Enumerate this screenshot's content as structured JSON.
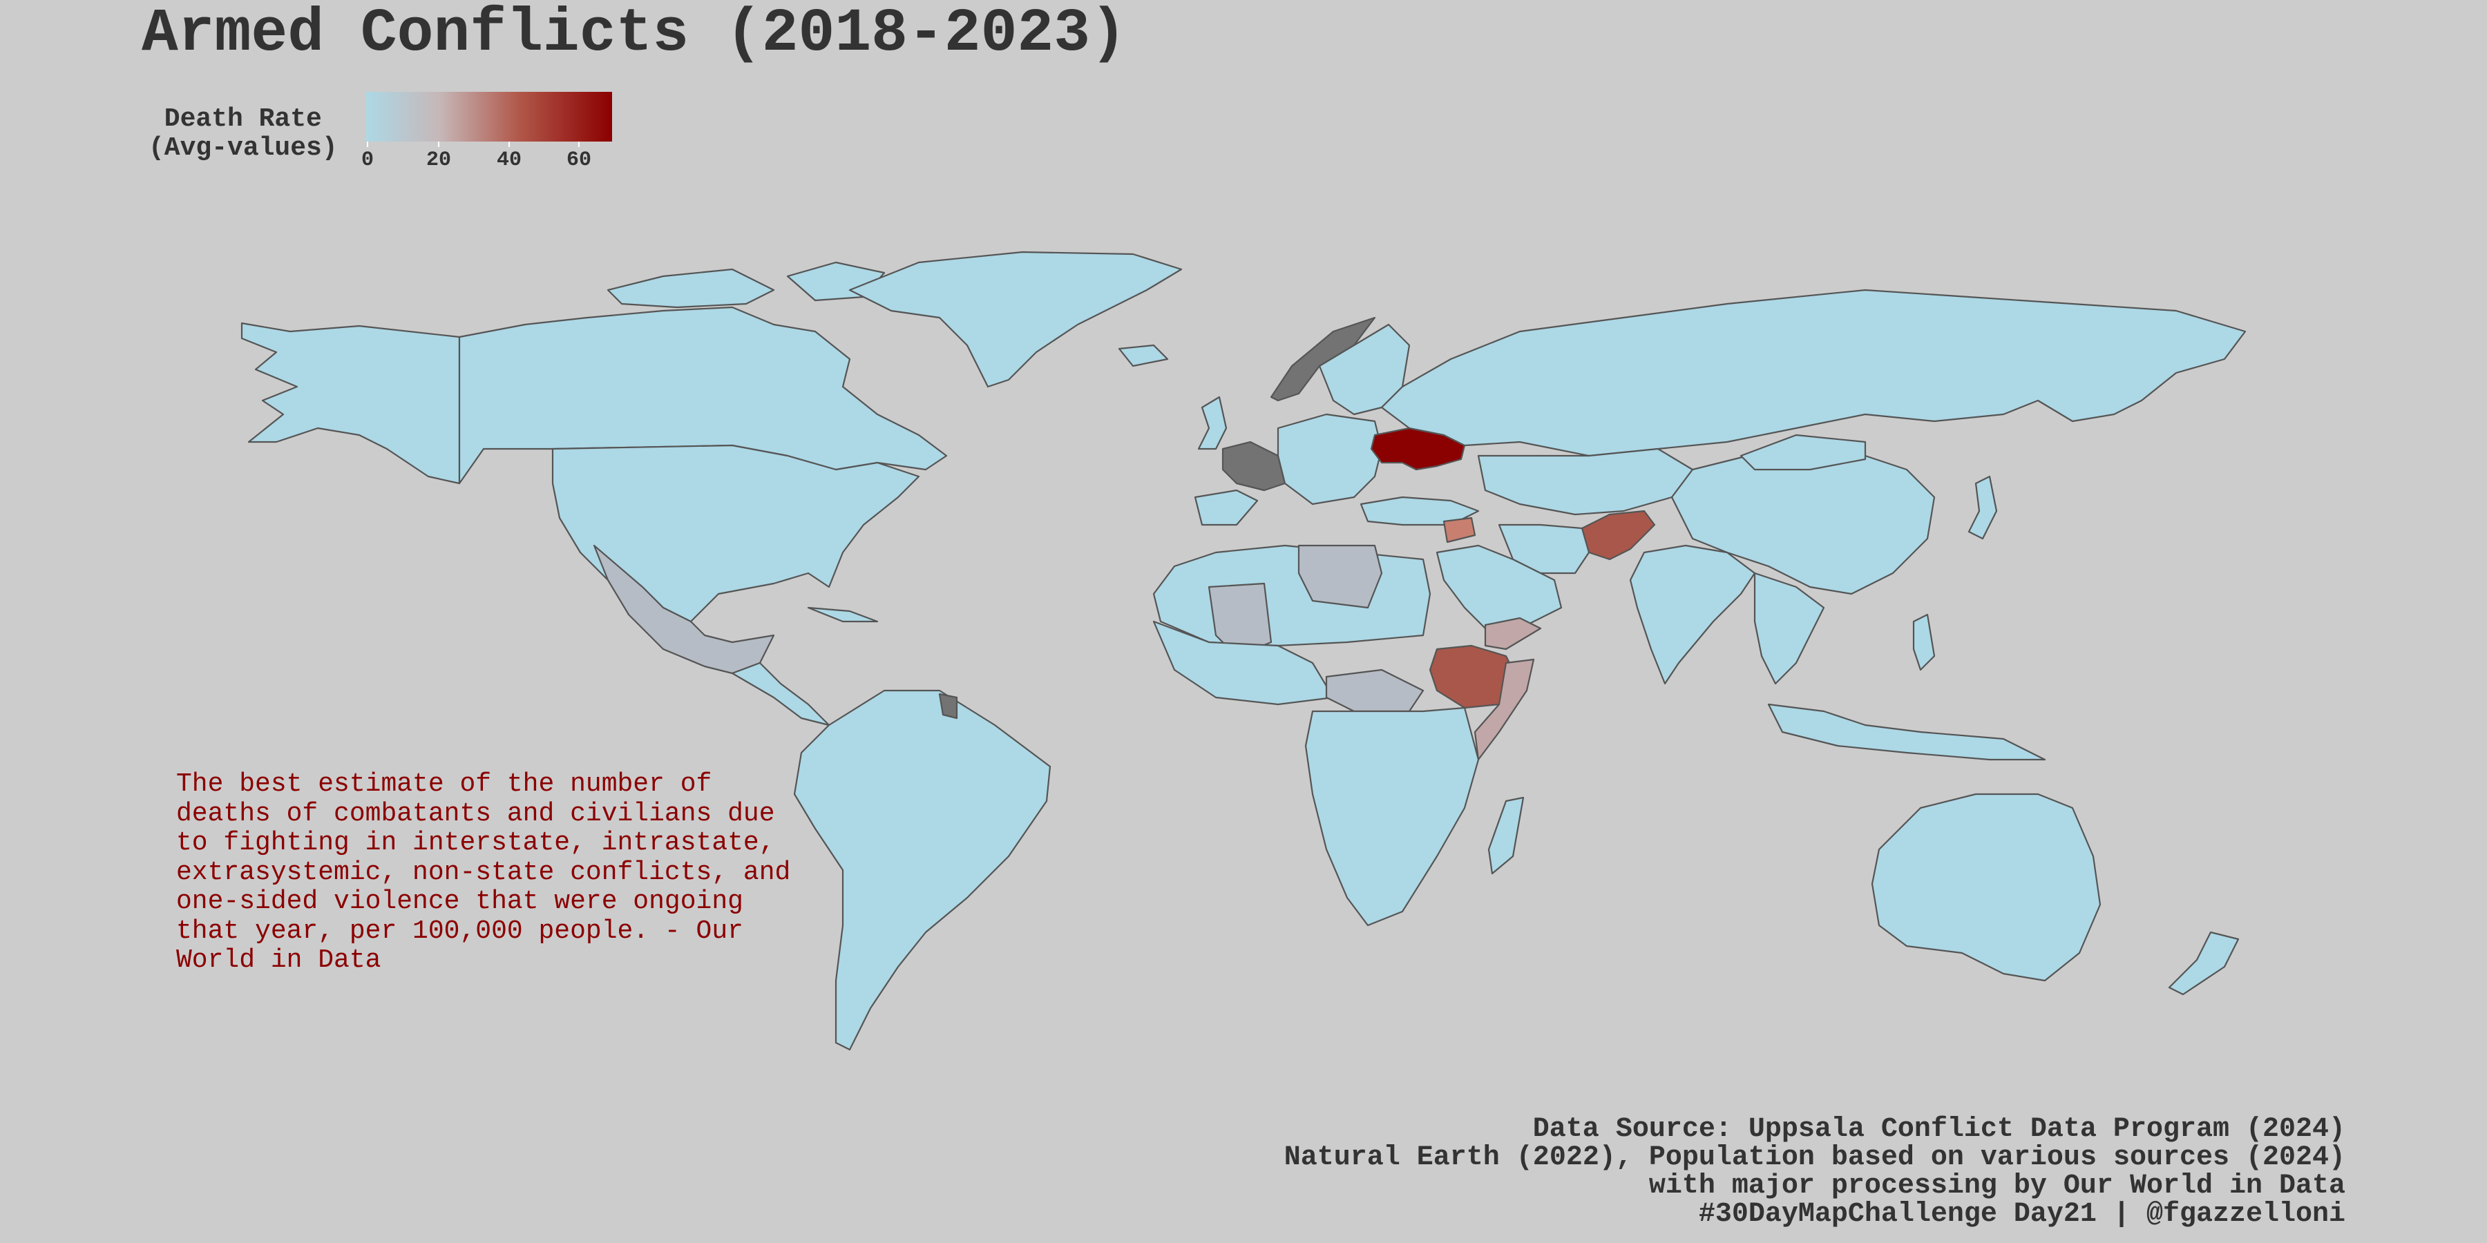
{
  "title": "Armed Conflicts (2018-2023)",
  "legend": {
    "title_line1": "Death Rate",
    "title_line2": "(Avg-values)",
    "ticks": [
      "0",
      "20",
      "40",
      "60"
    ],
    "tick_values": [
      0,
      20,
      40,
      60
    ],
    "range": [
      0,
      80
    ],
    "colors": {
      "low": "#add8e6",
      "mid": "#b1584a",
      "high": "#8b0000",
      "no_data": "#737373"
    }
  },
  "caption": "The best estimate of the number of\ndeaths of combatants and civilians due\nto fighting in interstate, intrastate,\nextrasystemic, non-state conflicts, and\none-sided violence that were ongoing\nthat year, per 100,000 people. - Our\nWorld in Data",
  "source_lines": [
    "Data Source: Uppsala Conflict Data Program (2024)",
    "Natural Earth (2022), Population based on various sources (2024)",
    "with major processing by Our World in Data",
    "#30DayMapChallenge Day21 | @fgazzelloni"
  ],
  "highlighted_regions": [
    {
      "name": "Ukraine",
      "value": 75
    },
    {
      "name": "Afghanistan",
      "value": 45
    },
    {
      "name": "Ethiopia",
      "value": 42
    },
    {
      "name": "Syria",
      "value": 35
    },
    {
      "name": "Yemen",
      "value": 20
    },
    {
      "name": "Mexico",
      "value": 12
    }
  ]
}
